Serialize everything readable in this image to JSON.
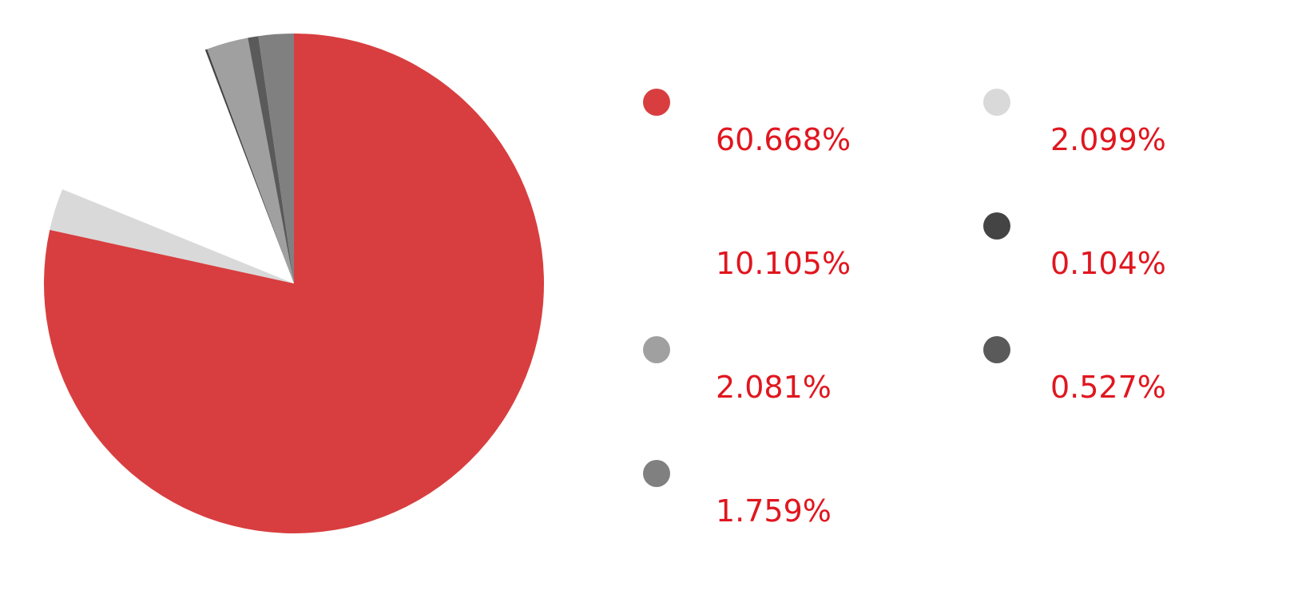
{
  "chart_data": {
    "type": "pie",
    "title": "",
    "start_angle": "12 o'clock",
    "direction": "clockwise",
    "legend_placement": "right",
    "slices": [
      {
        "label": "60.668%",
        "value": 60.668,
        "color": "#d83e3f",
        "legend_color": "#d83e3f"
      },
      {
        "label": "2.099%",
        "value": 2.099,
        "color": "#d9d9d9",
        "legend_color": "#d9d9d9"
      },
      {
        "label": "10.105%",
        "value": 10.105,
        "color": "#ffffff",
        "legend_color": "#ffffff"
      },
      {
        "label": "0.104%",
        "value": 0.104,
        "color": "#444444",
        "legend_color": "#444444"
      },
      {
        "label": "2.081%",
        "value": 2.081,
        "color": "#a0a0a0",
        "legend_color": "#a0a0a0"
      },
      {
        "label": "0.527%",
        "value": 0.527,
        "color": "#5a5a5a",
        "legend_color": "#5a5a5a"
      },
      {
        "label": "1.759%",
        "value": 1.759,
        "color": "#808080",
        "legend_color": "#808080"
      }
    ],
    "legend_order": [
      0,
      2,
      4,
      6,
      1,
      3,
      5
    ]
  }
}
